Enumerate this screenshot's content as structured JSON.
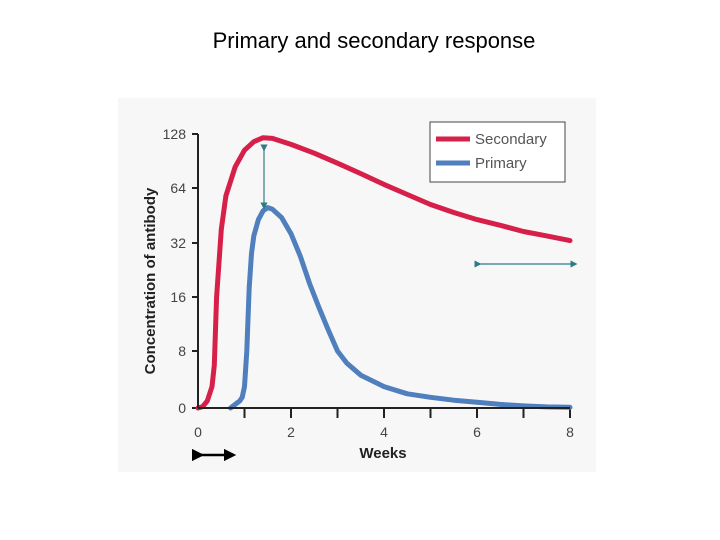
{
  "slide": {
    "title": "Primary and secondary response"
  },
  "colors": {
    "secondary": "#d6204a",
    "primary": "#4f7fbd",
    "axis": "#222222",
    "tick_text": "#444444",
    "arrow": "#2e7d86"
  },
  "chart_data": {
    "type": "line",
    "title": "",
    "xlabel": "Weeks",
    "ylabel": "Concentration of antibody",
    "yscale": "log2",
    "xlim": [
      0,
      8
    ],
    "x_ticks": [
      0,
      2,
      4,
      6,
      8
    ],
    "y_ticks": [
      0,
      8,
      16,
      32,
      64,
      128
    ],
    "grid": false,
    "legend": "top-right",
    "series": [
      {
        "name": "Secondary",
        "color": "#d6204a",
        "x": [
          0,
          0.1,
          0.2,
          0.3,
          0.35,
          0.4,
          0.5,
          0.6,
          0.8,
          1.0,
          1.2,
          1.4,
          1.6,
          2.0,
          2.5,
          3.0,
          3.5,
          4.0,
          4.5,
          5.0,
          5.5,
          6.0,
          6.5,
          7.0,
          7.5,
          8.0
        ],
        "y": [
          0,
          0.2,
          1,
          3,
          6,
          16,
          38,
          58,
          84,
          104,
          116,
          122,
          121,
          112,
          100,
          88,
          77,
          67,
          59,
          52,
          47,
          43,
          40,
          37,
          35,
          33
        ]
      },
      {
        "name": "Primary",
        "color": "#4f7fbd",
        "x": [
          0.7,
          0.8,
          0.9,
          0.95,
          1.0,
          1.05,
          1.1,
          1.15,
          1.2,
          1.3,
          1.4,
          1.5,
          1.6,
          1.8,
          2.0,
          2.2,
          2.4,
          2.6,
          2.8,
          3.0,
          3.2,
          3.5,
          4.0,
          4.5,
          5.0,
          5.5,
          6.0,
          6.5,
          7.0,
          7.5,
          8.0
        ],
        "y": [
          0,
          0.5,
          1,
          1.5,
          3,
          8,
          18,
          28,
          35,
          43,
          48,
          50,
          49,
          44,
          36,
          27,
          19,
          14,
          10.5,
          8,
          6.3,
          4.6,
          3,
          2,
          1.5,
          1.1,
          0.8,
          0.5,
          0.3,
          0.15,
          0.1
        ]
      }
    ]
  }
}
